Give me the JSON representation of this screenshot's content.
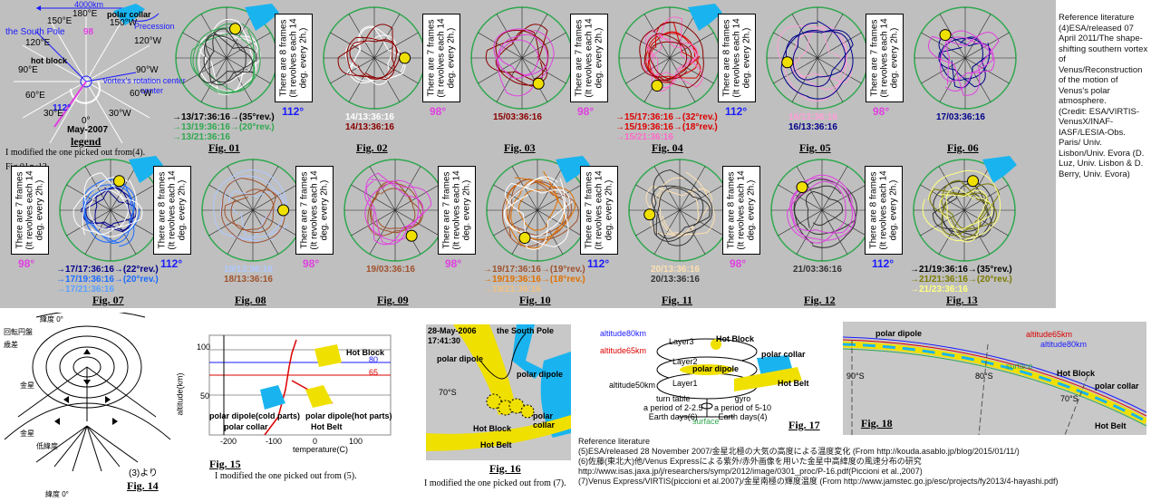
{
  "colors": {
    "cyan": "#19b4f0",
    "yellow": "#f0e000",
    "magenta": "#e040e0",
    "blue": "#1a1aff",
    "green": "#2fa84f",
    "red": "#dd0000",
    "bg": "#bfbfbf"
  },
  "legend": {
    "scale": "4000km",
    "deg_180": "180°E",
    "deg_180w": "180°W",
    "deg_150e": "150°E",
    "deg_150w": "150°W",
    "deg_120e": "120°E",
    "deg_120w": "120°W",
    "deg_90e": "90°E",
    "deg_90w": "90°W",
    "deg_60e": "60°E",
    "deg_60w": "60°W",
    "deg_30e": "30°E",
    "deg_30w": "30°W",
    "deg_0": "0°",
    "south_pole": "the South Pole",
    "polar_collar": "polar collar",
    "precession": "Precession",
    "hot_block": "hot block",
    "vortex_center": "vortex's rotation center",
    "num_98": "98",
    "num_112": "112°",
    "date": "May-2007",
    "title": "legend",
    "note": "I modified the one picked out from(4).",
    "figs": "Fig.01～13"
  },
  "frame_texts": {
    "eight": "There are 8 frames\n(It revolves each 14\ndeg. every 2h.)",
    "seven": "There are 7 frames\n(It revolves each 14\ndeg. every 2h.)"
  },
  "figs_top": [
    {
      "label": "Fig. 01",
      "times": [
        {
          "t": "→13/17:36:16→(35°rev.)",
          "c": "#000"
        },
        {
          "t": "→13/19:36:16→(20°rev.)",
          "c": "#2fa84f"
        },
        {
          "t": "→13/21:36:16",
          "c": "#2fa84f"
        }
      ]
    },
    {
      "label": "Fig. 02",
      "deg": "112°",
      "times": [
        {
          "t": "14/13:36:16",
          "c": "#fff"
        },
        {
          "t": "14/13:36:16",
          "c": "#8b0000"
        }
      ]
    },
    {
      "label": "Fig. 03",
      "deg": "98°",
      "times": [
        {
          "t": "15/03:36:16",
          "c": "#8b0000"
        }
      ]
    },
    {
      "label": "Fig. 04",
      "deg": "98°",
      "times": [
        {
          "t": "→15/17:36:16→(32°rev.)",
          "c": "#dd0000"
        },
        {
          "t": "→15/19:36:16→(18°rev.)",
          "c": "#dd0000"
        },
        {
          "t": "→15/21:36:16",
          "c": "#ff69c8"
        }
      ]
    },
    {
      "label": "Fig. 05",
      "deg": "112°",
      "times": [
        {
          "t": "16/13:36:16",
          "c": "#ffa0d8"
        },
        {
          "t": "16/13:36:16",
          "c": "#00008b"
        }
      ]
    },
    {
      "label": "Fig. 06",
      "deg": "98°",
      "times": [
        {
          "t": "17/03:36:16",
          "c": "#00008b"
        }
      ]
    }
  ],
  "figs_bottom": [
    {
      "label": "Fig. 07",
      "deg": "98°",
      "times": [
        {
          "t": "→17/17:36:16→(22°rev.)",
          "c": "#00008b"
        },
        {
          "t": "→17/19:36:16→(20°rev.)",
          "c": "#1a6aff"
        },
        {
          "t": "→17/21:36:16",
          "c": "#5aa0ff"
        }
      ]
    },
    {
      "label": "Fig. 08",
      "deg": "112°",
      "times": [
        {
          "t": "18/13:36:16",
          "c": "#b0c8ff"
        },
        {
          "t": "18/13:36:16",
          "c": "#a0522d"
        }
      ]
    },
    {
      "label": "Fig. 09",
      "deg": "98°",
      "times": [
        {
          "t": "19/03:36:16",
          "c": "#a0522d"
        }
      ]
    },
    {
      "label": "Fig. 10",
      "deg": "98°",
      "times": [
        {
          "t": "→19/17:36:16→(19°rev.)",
          "c": "#a0522d"
        },
        {
          "t": "→19/19:36:16→(18°rev.)",
          "c": "#e07000"
        },
        {
          "t": "→19/21:36:16",
          "c": "#f0c080"
        }
      ]
    },
    {
      "label": "Fig. 11",
      "deg": "112°",
      "times": [
        {
          "t": "20/13:36:16",
          "c": "#ffe0b0"
        },
        {
          "t": "20/13:36:16",
          "c": "#333"
        }
      ]
    },
    {
      "label": "Fig. 12",
      "deg": "98°",
      "times": [
        {
          "t": "21/03:36:16",
          "c": "#333"
        }
      ]
    },
    {
      "label": "Fig. 13",
      "deg": "112°",
      "times": [
        {
          "t": "→21/19:36:16→(35°rev.)",
          "c": "#000"
        },
        {
          "t": "→21/21:36:16→(20°rev.)",
          "c": "#7a7a00"
        },
        {
          "t": "→21/23:36:16",
          "c": "#ffff80"
        }
      ]
    }
  ],
  "ref_side": "Reference literature\n(4)ESA/released 07 April 2011/The shape-shifting southern vortex of Venus/Reconstruction of the motion of Venus's polar atmosphere.\n(Credit: ESA/VIRTIS-VenusX/INAF-IASF/LESIA-Obs. Paris/ Univ. Lisbon/Univ. Evora (D. Luz, Univ. Lisbon & D. Berry, Univ. Evora)",
  "fig14": {
    "label": "Fig. 14",
    "source": "(3)より",
    "t_lat0": "緯度 0°",
    "t_conv": "回転円盤",
    "t_prec": "歳差",
    "t_venus": "金星",
    "t_venus2": "金星",
    "t_low": "低緯度",
    "t_lat0b": "緯度 0°"
  },
  "fig15": {
    "label": "Fig. 15",
    "note": "I modified the one picked out from (5).",
    "ylabel": "altitude(km)",
    "xlabel": "temperature(C)",
    "y100": "100",
    "y50": "50",
    "x200": "-200",
    "x100": "-100",
    "x0": "0",
    "x100p": "100",
    "v80": "80",
    "v65": "65",
    "hot_block": "Hot Block",
    "pd_cold": "polar dipole(cold parts)",
    "polar_collar": "polar collar",
    "pd_hot": "polar dipole(hot parts)",
    "hot_belt": "Hot Belt"
  },
  "fig16": {
    "label": "Fig. 16",
    "note": "I modified the one picked out from (7).",
    "date": "28-May-2006",
    "time": "17:41:30",
    "south_pole": "the South Pole",
    "polar_dipole": "polar dipole",
    "polar_dipole2": "polar dipole",
    "lat": "70°S",
    "hot_block": "Hot Block",
    "polar_collar": "polar collar",
    "hot_belt": "Hot Belt"
  },
  "fig17": {
    "label": "Fig. 17",
    "alt80": "altitude80km",
    "alt65": "altitude65km",
    "alt50": "altitude50km",
    "layer3": "Layer3",
    "layer2": "Layer2",
    "layer1": "Layer1",
    "hot_block": "Hot Block",
    "polar_collar": "polar collar",
    "polar_dipole": "polar dipole",
    "hot_belt": "Hot Belt",
    "turn": "turn table\na period of 2-2.5\nEarth days(6)",
    "gyro": "gyro\na period of 5-10\nEarth days(4)",
    "surface": "surface"
  },
  "fig18": {
    "label": "Fig. 18",
    "polar_dipole": "polar dipole",
    "alt65": "altitude65km",
    "alt80": "altitude80km",
    "surface": "surface",
    "lat90": "90°S",
    "lat80": "80°S",
    "lat70": "70°S",
    "hot_block": "Hot Block",
    "polar_collar": "polar collar",
    "hot_belt": "Hot Belt"
  },
  "ref_bottom": {
    "title": "Reference literature",
    "r5": "(5)ESA/released 28 November 2007/金星北極の大気の高度による温度変化 (From http://kouda.asablo.jp/blog/2015/01/11/)",
    "r6": "(6)佐藤(東北大)他/Venus Expressによる紫外/赤外画像を用いた金星中高緯度の風速分布の研究",
    "r6b": " http://www.isas.jaxa.jp/j/researchers/symp/2012/image/0301_proc/P-16.pdf(Piccioni et al.,2007)",
    "r7": "(7)Venus Express/VIRTIS(piccioni et al.2007)/金星南極の輝度温度 (From http://www.jamstec.go.jp/esc/projects/fy2013/4-hayashi.pdf)"
  }
}
